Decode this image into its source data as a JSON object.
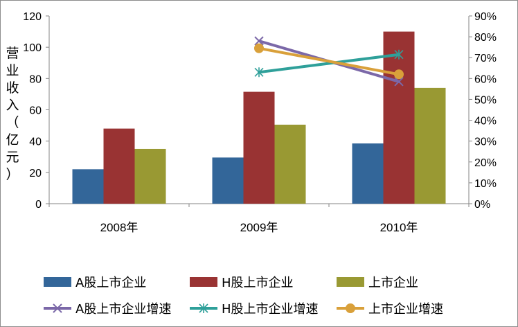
{
  "chart_data": {
    "type": "bar+line",
    "categories": [
      "2008年",
      "2009年",
      "2010年"
    ],
    "ylabel": "营业收入（亿元）",
    "ylim": [
      0,
      120
    ],
    "yticks": [
      "0",
      "20",
      "40",
      "60",
      "80",
      "100",
      "120"
    ],
    "y2lim": [
      0,
      0.9
    ],
    "y2ticks": [
      "0%",
      "10%",
      "20%",
      "30%",
      "40%",
      "50%",
      "60%",
      "70%",
      "80%",
      "90%"
    ],
    "bar_series": [
      {
        "name": "A股上市企业",
        "color": "#336699",
        "values": [
          22,
          29.5,
          38.5
        ]
      },
      {
        "name": "H股上市企业",
        "color": "#993333",
        "values": [
          48,
          71.5,
          110
        ]
      },
      {
        "name": "上市企业",
        "color": "#999933",
        "values": [
          35,
          50.5,
          74
        ]
      }
    ],
    "line_series": [
      {
        "name": "A股上市企业增速",
        "color": "#7B68A8",
        "marker": "x",
        "values": [
          null,
          0.78,
          0.585
        ]
      },
      {
        "name": "H股上市企业增速",
        "color": "#2FA09A",
        "marker": "star",
        "values": [
          null,
          0.63,
          0.715
        ]
      },
      {
        "name": "上市企业增速",
        "color": "#D9A03A",
        "marker": "circle",
        "values": [
          null,
          0.745,
          0.62
        ]
      }
    ],
    "legend_position": "bottom",
    "grid": false
  }
}
